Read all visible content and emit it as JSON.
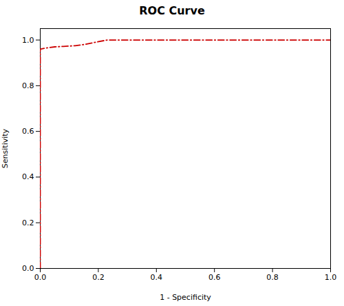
{
  "chart_data": {
    "type": "line",
    "title": "ROC Curve",
    "xlabel": "1 - Specificity",
    "ylabel": "Sensitivity",
    "x": [
      0.0,
      0.0,
      0.0,
      0.02,
      0.05,
      0.08,
      0.12,
      0.15,
      0.23,
      0.3,
      0.4,
      0.5,
      0.6,
      0.7,
      0.8,
      0.9,
      1.0
    ],
    "values": [
      0.0,
      0.5,
      0.96,
      0.965,
      0.97,
      0.972,
      0.975,
      0.98,
      1.0,
      1.0,
      1.0,
      1.0,
      1.0,
      1.0,
      1.0,
      1.0,
      1.0
    ],
    "color": "#cc0000",
    "line_style": "dashdot",
    "xlim": [
      0.0,
      1.0
    ],
    "ylim": [
      0.0,
      1.05
    ],
    "xticks": [
      {
        "value": 0.0,
        "label": "0.0"
      },
      0.2,
      0.4,
      0.6,
      0.8,
      {
        "value": 1.0,
        "label": "1.0"
      }
    ],
    "yticks": [
      {
        "value": 0.0,
        "label": "0.0"
      },
      0.2,
      0.4,
      0.6,
      0.8,
      {
        "value": 1.0,
        "label": "1.0"
      }
    ],
    "grid": false
  }
}
